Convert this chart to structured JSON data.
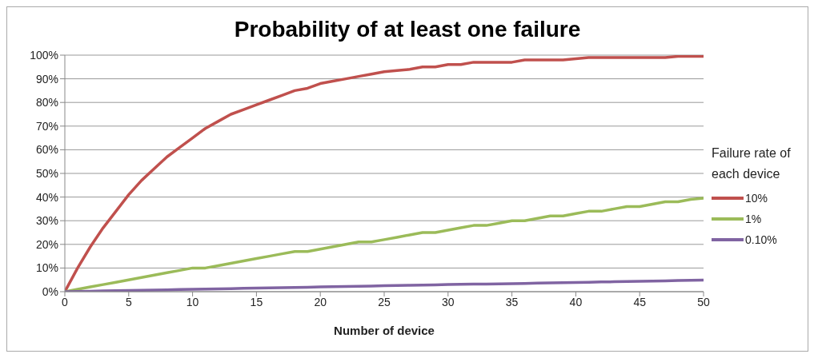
{
  "chart_data": {
    "type": "line",
    "title": "Probability of at least one failure",
    "xlabel": "Number of device",
    "legend_title": "Failure rate of each device",
    "x": [
      0,
      1,
      2,
      3,
      4,
      5,
      6,
      7,
      8,
      9,
      10,
      11,
      12,
      13,
      14,
      15,
      16,
      17,
      18,
      19,
      20,
      21,
      22,
      23,
      24,
      25,
      26,
      27,
      28,
      29,
      30,
      31,
      32,
      33,
      34,
      35,
      36,
      37,
      38,
      39,
      40,
      41,
      42,
      43,
      44,
      45,
      46,
      47,
      48,
      49,
      50
    ],
    "series": [
      {
        "name": "10%",
        "color": "#c0504d",
        "values": [
          0,
          10,
          19,
          27,
          34,
          41,
          47,
          52,
          57,
          61,
          65,
          69,
          72,
          75,
          77,
          79,
          81,
          83,
          85,
          86,
          88,
          89,
          90,
          91,
          92,
          93,
          93.5,
          94,
          95,
          95,
          96,
          96,
          97,
          97,
          97,
          97,
          98,
          98,
          98,
          98,
          98.5,
          99,
          99,
          99,
          99,
          99,
          99,
          99,
          99.5,
          99.5,
          99.5
        ]
      },
      {
        "name": "1%",
        "color": "#9bbb59",
        "values": [
          0,
          1,
          2,
          3,
          4,
          5,
          6,
          7,
          8,
          9,
          10,
          10,
          11,
          12,
          13,
          14,
          15,
          16,
          17,
          17,
          18,
          19,
          20,
          21,
          21,
          22,
          23,
          24,
          25,
          25,
          26,
          27,
          28,
          28,
          29,
          30,
          30,
          31,
          32,
          32,
          33,
          34,
          34,
          35,
          36,
          36,
          37,
          38,
          38,
          39,
          39.5
        ]
      },
      {
        "name": "0.10%",
        "color": "#8064a2",
        "values": [
          0,
          0.1,
          0.2,
          0.3,
          0.4,
          0.5,
          0.6,
          0.7,
          0.8,
          0.9,
          1,
          1.1,
          1.2,
          1.3,
          1.4,
          1.5,
          1.6,
          1.7,
          1.8,
          1.9,
          2,
          2.1,
          2.2,
          2.3,
          2.4,
          2.5,
          2.6,
          2.7,
          2.8,
          2.9,
          3,
          3.1,
          3.2,
          3.2,
          3.3,
          3.4,
          3.5,
          3.6,
          3.7,
          3.8,
          3.9,
          4,
          4.1,
          4.2,
          4.3,
          4.4,
          4.5,
          4.6,
          4.7,
          4.8,
          4.9
        ]
      }
    ],
    "xlim": [
      0,
      50
    ],
    "xticks": [
      0,
      5,
      10,
      15,
      20,
      25,
      30,
      35,
      40,
      45,
      50
    ],
    "ylim": [
      0,
      100
    ],
    "yticks": [
      {
        "value": 0,
        "label": "0%"
      },
      {
        "value": 10,
        "label": "10%"
      },
      {
        "value": 20,
        "label": "20%"
      },
      {
        "value": 30,
        "label": "30%"
      },
      {
        "value": 40,
        "label": "40%"
      },
      {
        "value": 50,
        "label": "50%"
      },
      {
        "value": 60,
        "label": "60%"
      },
      {
        "value": 70,
        "label": "70%"
      },
      {
        "value": 80,
        "label": "80%"
      },
      {
        "value": 90,
        "label": "90%"
      },
      {
        "value": 100,
        "label": "100%"
      }
    ],
    "grid": "y",
    "legend": "right",
    "marker": "none",
    "line_style": "solid"
  }
}
